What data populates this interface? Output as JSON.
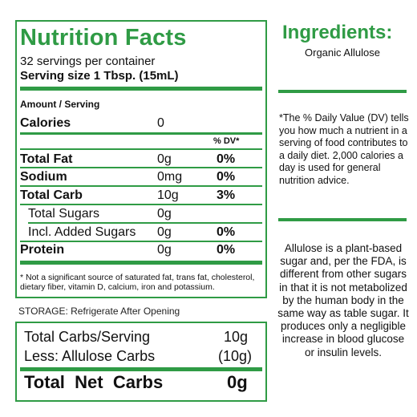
{
  "nutrition": {
    "title": "Nutrition Facts",
    "servings_per_container": "32 servings per container",
    "serving_size": "Serving size 1 Tbsp. (15mL)",
    "amount_per_serving": "Amount / Serving",
    "calories_label": "Calories",
    "calories_value": "0",
    "dv_header": "% DV*",
    "rows": [
      {
        "label": "Total Fat",
        "amount": "0g",
        "dv": "0%"
      },
      {
        "label": "Sodium",
        "amount": "0mg",
        "dv": "0%"
      },
      {
        "label": "Total Carb",
        "amount": "10g",
        "dv": "3%"
      },
      {
        "label": "Total Sugars",
        "amount": "0g",
        "dv": ""
      },
      {
        "label": "Incl. Added Sugars",
        "amount": "0g",
        "dv": "0%"
      },
      {
        "label": "Protein",
        "amount": "0g",
        "dv": "0%"
      }
    ],
    "footnote": "* Not a significant source of saturated fat, trans fat, cholesterol, dietary fiber, vitamin D, calcium, iron and potassium."
  },
  "storage": "STORAGE: Refrigerate After Opening",
  "net_carbs": {
    "row1_label": "Total Carbs/Serving",
    "row1_value": "10g",
    "row2_label": "Less: Allulose Carbs",
    "row2_value": "(10g)",
    "total_label": "Total  Net  Carbs",
    "total_value": "0g"
  },
  "ingredients": {
    "title": "Ingredients:",
    "text": "Organic Allulose"
  },
  "dv_note": "*The % Daily Value (DV) tells you how much a nutrient in a serving of food contributes to a daily diet. 2,000 calories a day is used for general nutrition advice.",
  "allulose_note": "Allulose is a plant-based sugar and, per the FDA, is different from other sugars in that it is not metabolized by the human body in the same way as table sugar. It produces only a negligible increase in blood glucose or insulin levels.",
  "colors": {
    "brand_green": "#2f9b45"
  }
}
